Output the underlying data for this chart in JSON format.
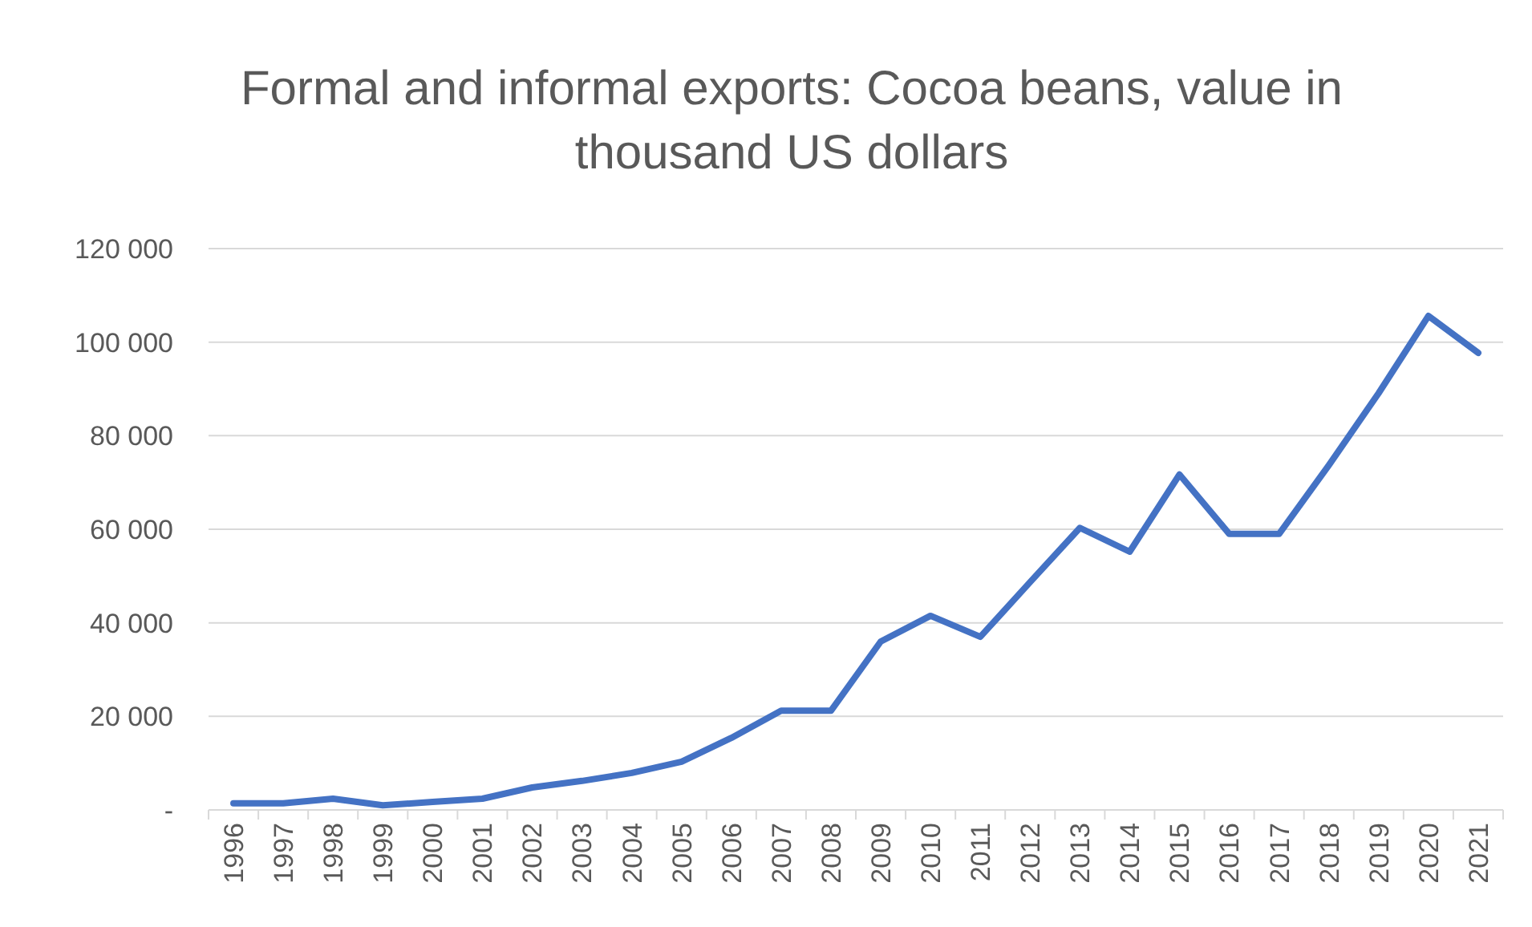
{
  "chart_data": {
    "type": "line",
    "title": "Formal and informal exports: Cocoa beans, value in thousand US dollars",
    "categories": [
      "1996",
      "1997",
      "1998",
      "1999",
      "2000",
      "2001",
      "2002",
      "2003",
      "2004",
      "2005",
      "2006",
      "2007",
      "2008",
      "2009",
      "2010",
      "2011",
      "2012",
      "2013",
      "2014",
      "2015",
      "2016",
      "2017",
      "2018",
      "2019",
      "2020",
      "2021"
    ],
    "series": [
      {
        "color": "#4472c4",
        "values": [
          1400,
          1400,
          2400,
          1000,
          1700,
          2400,
          4800,
          6200,
          7900,
          10300,
          15400,
          21200,
          21200,
          36000,
          41500,
          37000,
          48700,
          60300,
          55200,
          71700,
          59000,
          59000,
          73700,
          89100,
          105600,
          97700
        ]
      }
    ],
    "ylim": [
      0,
      120000
    ],
    "yticks": [
      {
        "value": 0,
        "label": "-"
      },
      {
        "value": 20000,
        "label": "20 000"
      },
      {
        "value": 40000,
        "label": "40 000"
      },
      {
        "value": 60000,
        "label": "60 000"
      },
      {
        "value": 80000,
        "label": "80 000"
      },
      {
        "value": 100000,
        "label": "100 000"
      },
      {
        "value": 120000,
        "label": "120 000"
      }
    ],
    "grid": "y",
    "marker": "none",
    "line_style": "solid"
  }
}
